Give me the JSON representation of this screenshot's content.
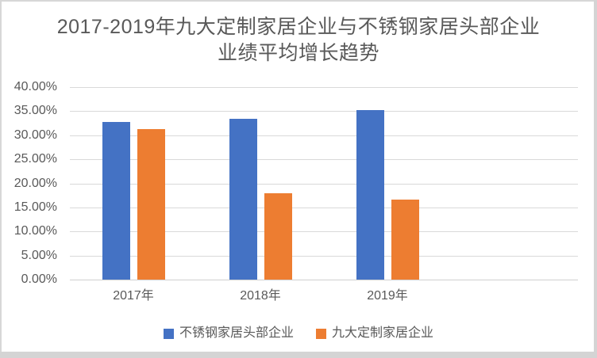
{
  "frame": {
    "color": "#d7d7d7",
    "background": "#ffffff"
  },
  "chart_data": {
    "type": "bar",
    "title": "2017-2019年九大定制家居企业与不锈钢家居头部企业业绩平均增长趋势",
    "title_lines": [
      "2017-2019年九大定制家居企业与不锈钢家居头部企业",
      "业绩平均增长趋势"
    ],
    "categories": [
      "2017年",
      "2018年",
      "2019年"
    ],
    "series": [
      {
        "name": "不锈钢家居头部企业",
        "color": "#4472C4",
        "values": [
          32.8,
          33.4,
          35.2
        ]
      },
      {
        "name": "九大定制家居企业",
        "color": "#ED7D31",
        "values": [
          31.3,
          18.0,
          16.6
        ]
      }
    ],
    "xlabel": "",
    "ylabel": "",
    "y_axis": {
      "min": 0,
      "max": 40,
      "step": 5,
      "tick_labels": [
        "0.00%",
        "5.00%",
        "10.00%",
        "15.00%",
        "20.00%",
        "25.00%",
        "30.00%",
        "35.00%",
        "40.00%"
      ],
      "format": "percent"
    },
    "grid": true,
    "gridline_color": "#d9d9d9",
    "legend_position": "bottom",
    "empty_trailing_category_slots": 1,
    "text_color": "#595959"
  }
}
